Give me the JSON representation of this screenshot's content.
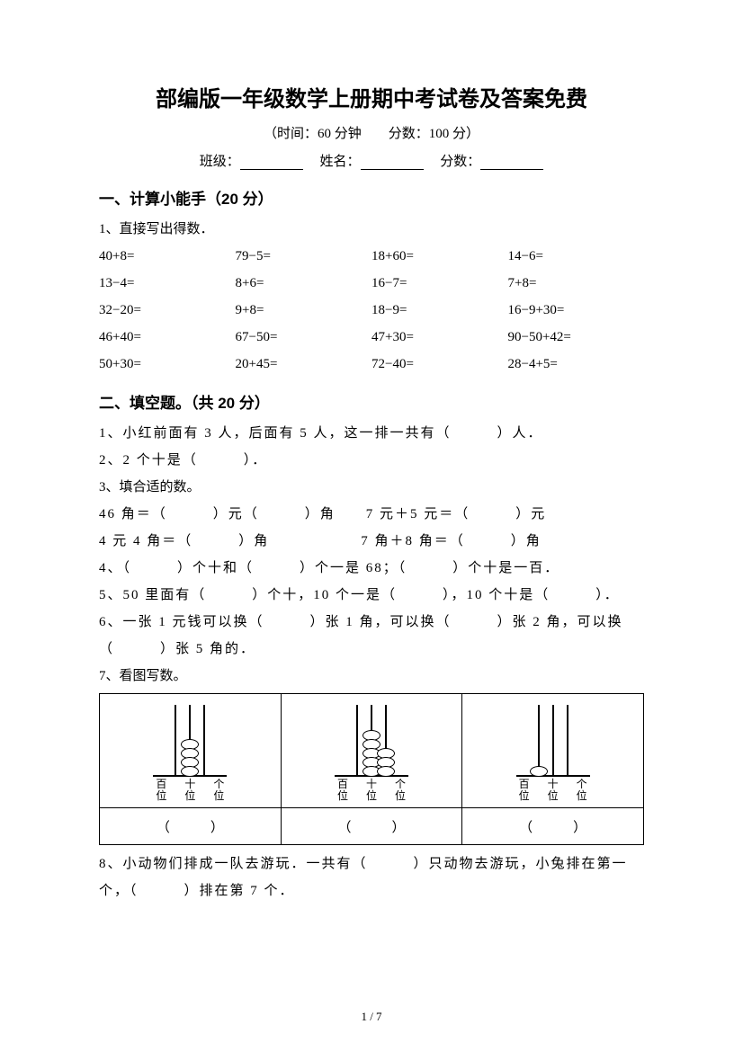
{
  "title": "部编版一年级数学上册期中考试卷及答案免费",
  "subtitle": "（时间：60 分钟　　分数：100 分）",
  "info": {
    "class_label": "班级：",
    "name_label": "姓名：",
    "score_label": "分数："
  },
  "s1": {
    "heading": "一、计算小能手（20 分）",
    "q1_label": "1、直接写出得数．",
    "cells": [
      "40+8=",
      "79−5=",
      "18+60=",
      "14−6=",
      "13−4=",
      "8+6=",
      "16−7=",
      "7+8=",
      "32−20=",
      "9+8=",
      "18−9=",
      "16−9+30=",
      "46+40=",
      "67−50=",
      "47+30=",
      "90−50+42=",
      "50+30=",
      "20+45=",
      "72−40=",
      "28−4+5="
    ]
  },
  "s2": {
    "heading": "二、填空题。（共 20 分）",
    "q1": "1、小红前面有 3 人，后面有 5 人，这一排一共有（　　　）人．",
    "q2": "2、2 个十是（　　　）．",
    "q3_label": "3、填合适的数。",
    "q3_a": "46 角＝（　　　）元（　　　）角　　7 元＋5 元＝（　　　）元",
    "q3_b": "4 元 4 角＝（　　　）角　　　　　　7 角＋8 角＝（　　　）角",
    "q4": "4、（　　　）个十和（　　　）个一是 68；（　　　）个十是一百．",
    "q5": "5、50 里面有（　　　）个十，10 个一是（　　　），10 个十是（　　　）．",
    "q6_a": "6、一张 1 元钱可以换（　　　）张 1 角，可以换（　　　）张 2 角，可以换",
    "q6_b": "（　　　）张 5 角的．",
    "q7_label": "7、看图写数。",
    "abacus": {
      "rod_height": 78,
      "labels": [
        "百位",
        "十位",
        "个位"
      ],
      "cells": [
        {
          "beads": [
            0,
            4,
            0
          ]
        },
        {
          "beads": [
            0,
            5,
            3
          ]
        },
        {
          "beads": [
            1,
            0,
            0
          ]
        }
      ],
      "answer_blank": "（　　　）"
    },
    "q8_a": "8、小动物们排成一队去游玩．一共有（　　　）只动物去游玩，小兔排在第一",
    "q8_b": "个，（　　　）排在第 7 个．"
  },
  "page_number": "1 / 7"
}
